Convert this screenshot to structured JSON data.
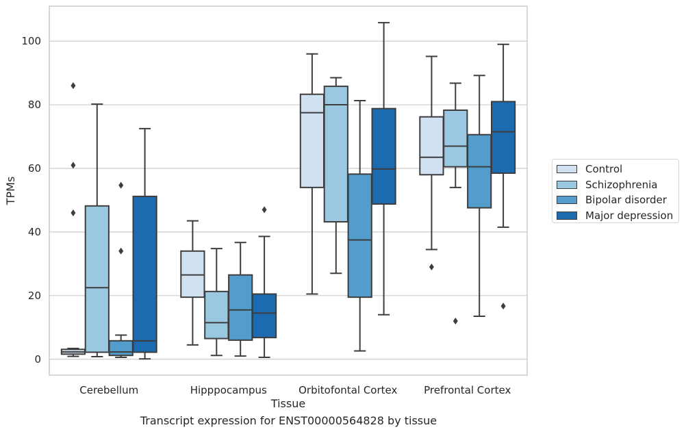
{
  "caption": "Transcript expression for ENST00000564828 by tissue",
  "chart_data": {
    "type": "box",
    "xlabel": "Tissue",
    "ylabel": "TPMs",
    "ylim": [
      -5,
      111
    ],
    "yticks": [
      0,
      20,
      40,
      60,
      80,
      100
    ],
    "grid": "horizontal",
    "legend_position": "right",
    "categories": [
      "Cerebellum",
      "Hipppocampus",
      "Orbitofontal Cortex",
      "Prefrontal Cortex"
    ],
    "series": [
      {
        "name": "Control",
        "color": "#d0e2f2",
        "boxes": [
          {
            "whislo": 0.9,
            "q1": 1.6,
            "med": 2.3,
            "q3": 3.1,
            "whishi": 3.4,
            "fliers": [
              86,
              61,
              46
            ]
          },
          {
            "whislo": 4.5,
            "q1": 19.5,
            "med": 26.5,
            "q3": 34,
            "whishi": 43.5,
            "fliers": []
          },
          {
            "whislo": 20.5,
            "q1": 54,
            "med": 77.5,
            "q3": 83.3,
            "whishi": 96,
            "fliers": []
          },
          {
            "whislo": 34.5,
            "q1": 58,
            "med": 63.5,
            "q3": 76.2,
            "whishi": 95.2,
            "fliers": [
              29
            ]
          }
        ]
      },
      {
        "name": "Schizophrenia",
        "color": "#9ac8e0",
        "boxes": [
          {
            "whislo": 0.8,
            "q1": 2.2,
            "med": 22.5,
            "q3": 48.2,
            "whishi": 80.2,
            "fliers": []
          },
          {
            "whislo": 1.2,
            "q1": 6.5,
            "med": 11.5,
            "q3": 21.3,
            "whishi": 34.8,
            "fliers": []
          },
          {
            "whislo": 27,
            "q1": 43.2,
            "med": 80,
            "q3": 85.8,
            "whishi": 88.5,
            "fliers": []
          },
          {
            "whislo": 54,
            "q1": 60.5,
            "med": 67,
            "q3": 78.3,
            "whishi": 86.8,
            "fliers": [
              12
            ]
          }
        ]
      },
      {
        "name": "Bipolar disorder",
        "color": "#529dcc",
        "boxes": [
          {
            "whislo": 0.6,
            "q1": 1.2,
            "med": 2.3,
            "q3": 5.8,
            "whishi": 7.6,
            "fliers": [
              54.7,
              34
            ]
          },
          {
            "whislo": 1,
            "q1": 6,
            "med": 15.5,
            "q3": 26.5,
            "whishi": 36.7,
            "fliers": []
          },
          {
            "whislo": 2.6,
            "q1": 19.5,
            "med": 37.5,
            "q3": 58.2,
            "whishi": 81.3,
            "fliers": []
          },
          {
            "whislo": 13.5,
            "q1": 47.6,
            "med": 60.5,
            "q3": 70.6,
            "whishi": 89.2,
            "fliers": []
          }
        ]
      },
      {
        "name": "Major depression",
        "color": "#1c6aaf",
        "boxes": [
          {
            "whislo": 0.1,
            "q1": 2.2,
            "med": 5.8,
            "q3": 51.2,
            "whishi": 72.5,
            "fliers": []
          },
          {
            "whislo": 0.6,
            "q1": 6.8,
            "med": 14.5,
            "q3": 20.5,
            "whishi": 38.6,
            "fliers": [
              47
            ]
          },
          {
            "whislo": 14,
            "q1": 48.8,
            "med": 59.8,
            "q3": 78.8,
            "whishi": 105.8,
            "fliers": []
          },
          {
            "whislo": 41.5,
            "q1": 58.5,
            "med": 71.5,
            "q3": 81,
            "whishi": 99,
            "fliers": [
              16.7
            ]
          }
        ]
      }
    ]
  }
}
